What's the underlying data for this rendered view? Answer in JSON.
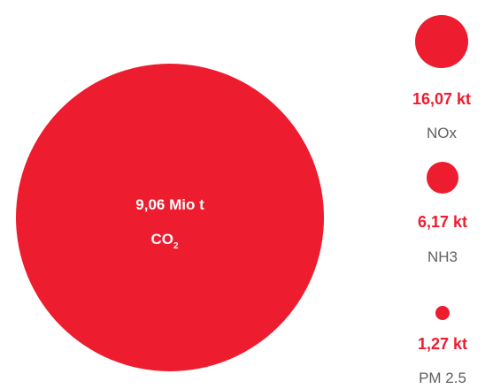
{
  "colors": {
    "bubble": "#ED1C2E",
    "value_text": "#ED1C2E",
    "label_text": "#606060",
    "inside_text": "#ffffff",
    "background": "#ffffff"
  },
  "chart_data": {
    "type": "bubble",
    "title": "",
    "series": [
      {
        "category": "CO2",
        "value": 9060,
        "unit": "kt",
        "value_label": "9,06 Mio t",
        "label_main": "CO",
        "label_sub": "2"
      },
      {
        "category": "NOx",
        "value": 16.07,
        "unit": "kt",
        "value_label": "16,07 kt",
        "label": "NOx"
      },
      {
        "category": "NH3",
        "value": 6.17,
        "unit": "kt",
        "value_label": "6,17 kt",
        "label": "NH3"
      },
      {
        "category": "PM 2.5",
        "value": 1.27,
        "unit": "kt",
        "value_label": "1,27 kt",
        "label": "PM 2.5"
      }
    ]
  }
}
